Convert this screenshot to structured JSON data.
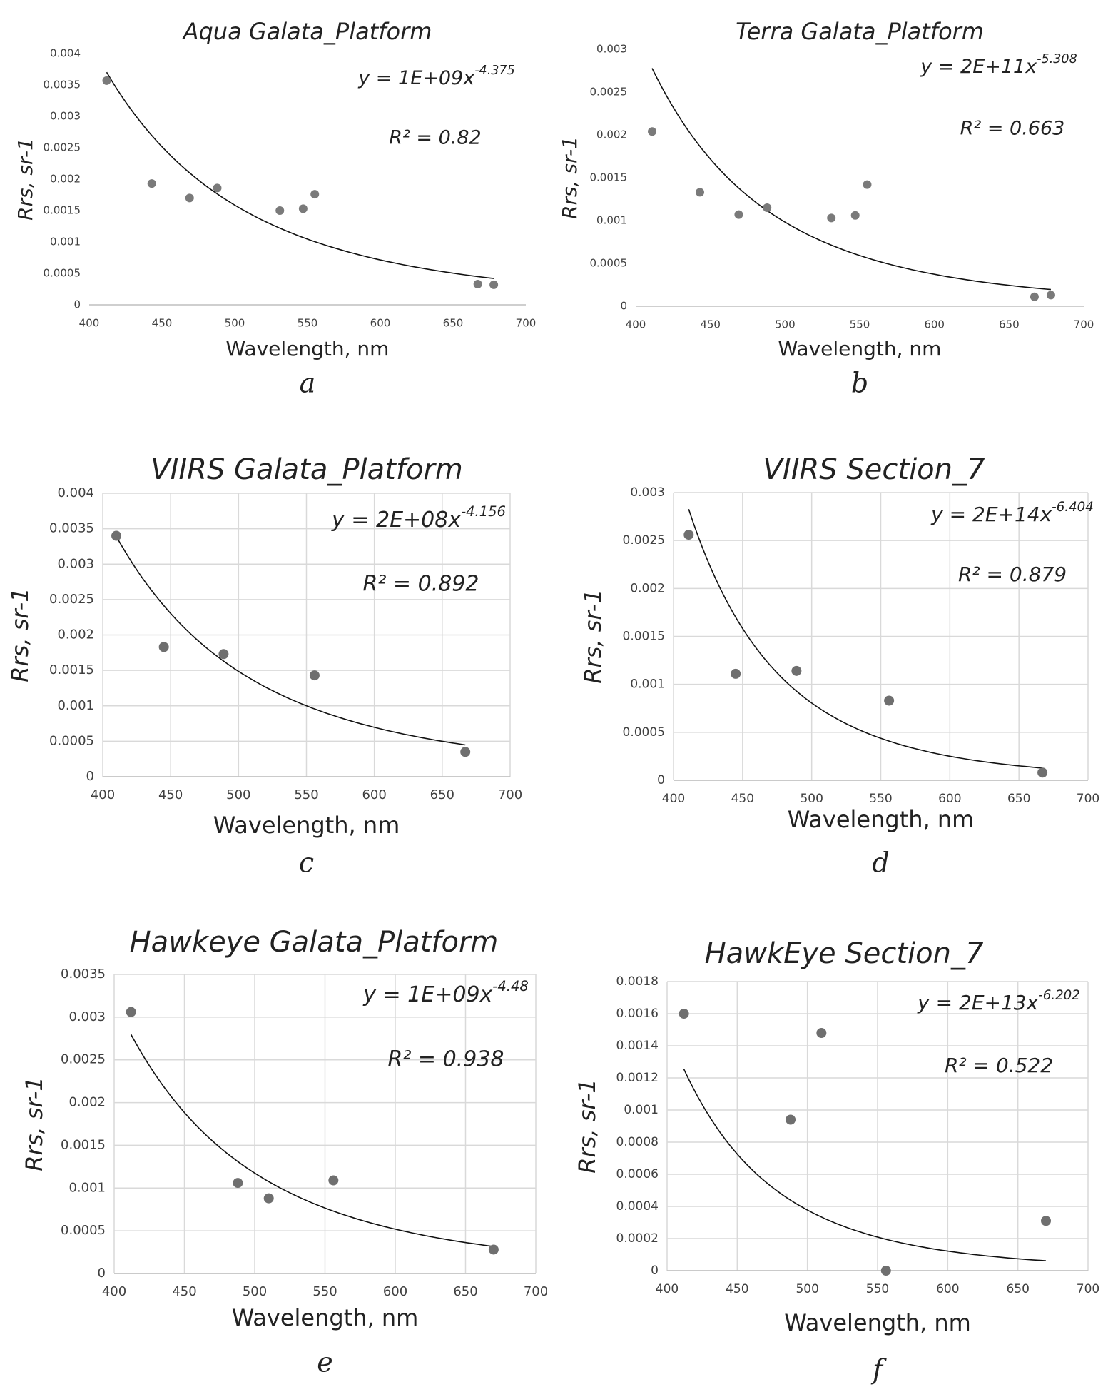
{
  "chart_data": [
    {
      "type": "scatter",
      "title": "Aqua Galata_Platform",
      "xlabel": "Wavelength, nm",
      "ylabel": "Rrs, sr-1",
      "caption": "a",
      "x": [
        412,
        443,
        469,
        488,
        531,
        547,
        555,
        667,
        678
      ],
      "values": [
        0.00357,
        0.00193,
        0.0017,
        0.00186,
        0.0015,
        0.00153,
        0.00176,
        0.00033,
        0.00032
      ],
      "xlim": [
        400,
        700
      ],
      "ylim": [
        0,
        0.004
      ],
      "xticks": [
        400,
        450,
        500,
        550,
        600,
        650,
        700
      ],
      "yticks": [
        0,
        0.0005,
        0.001,
        0.0015,
        0.002,
        0.0025,
        0.003,
        0.0035,
        0.004
      ],
      "grid": false,
      "color": "#7a7a7a",
      "trend": {
        "coef": 1020000000.0,
        "exponent": -4.375,
        "x": [
          412,
          678
        ]
      },
      "equation": "y = 1E+09x",
      "r2": "R² = 0.82"
    },
    {
      "type": "scatter",
      "title": "Terra Galata_Platform",
      "xlabel": "Wavelength, nm",
      "ylabel": "Rrs, sr-1",
      "caption": "b",
      "x": [
        411,
        443,
        469,
        488,
        531,
        547,
        555,
        667,
        678
      ],
      "values": [
        0.00204,
        0.00133,
        0.00107,
        0.00115,
        0.00103,
        0.00106,
        0.00142,
        0.00011,
        0.00013
      ],
      "xlim": [
        400,
        700
      ],
      "ylim": [
        0,
        0.003
      ],
      "xticks": [
        400,
        450,
        500,
        550,
        600,
        650,
        700
      ],
      "yticks": [
        0,
        0.0005,
        0.001,
        0.0015,
        0.002,
        0.0025,
        0.003
      ],
      "grid": false,
      "color": "#7a7a7a",
      "trend": {
        "coef": 208000000000.0,
        "exponent": -5.308,
        "x": [
          411,
          678
        ]
      },
      "equation": "y = 2E+11x",
      "r2": "R² = 0.663"
    },
    {
      "type": "scatter",
      "title": "VIIRS Galata_Platform",
      "xlabel": "Wavelength, nm",
      "ylabel": "Rrs, sr-1",
      "caption": "c",
      "x": [
        410,
        445,
        489,
        556,
        667
      ],
      "values": [
        0.0034,
        0.00183,
        0.00173,
        0.00143,
        0.00035
      ],
      "xlim": [
        400,
        700
      ],
      "ylim": [
        0,
        0.004
      ],
      "xticks": [
        400,
        450,
        500,
        550,
        600,
        650,
        700
      ],
      "yticks": [
        0,
        0.0005,
        0.001,
        0.0015,
        0.002,
        0.0025,
        0.003,
        0.0035,
        0.004
      ],
      "grid": true,
      "color": "#6f6f6f",
      "trend": {
        "coef": 245000000.0,
        "exponent": -4.156,
        "x": [
          410,
          667
        ]
      },
      "equation": "y = 2E+08x",
      "r2": "R² = 0.892"
    },
    {
      "type": "scatter",
      "title": "VIIRS Section_7",
      "xlabel": "Wavelength, nm",
      "ylabel": "Rrs, sr-1",
      "caption": "d",
      "x": [
        411,
        445,
        489,
        556,
        667
      ],
      "values": [
        0.00256,
        0.00111,
        0.00114,
        0.00083,
        8e-05
      ],
      "xlim": [
        400,
        700
      ],
      "ylim": [
        0,
        0.003
      ],
      "xticks": [
        400,
        450,
        500,
        550,
        600,
        650,
        700
      ],
      "yticks": [
        0,
        0.0005,
        0.001,
        0.0015,
        0.002,
        0.0025,
        0.003
      ],
      "grid": true,
      "color": "#6f6f6f",
      "trend": {
        "coef": 155000000000000.0,
        "exponent": -6.404,
        "x": [
          411,
          667
        ]
      },
      "equation": "y = 2E+14x",
      "r2": "R² = 0.879"
    },
    {
      "type": "scatter",
      "title": "Hawkeye Galata_Platform",
      "xlabel": "Wavelength, nm",
      "ylabel": "Rrs, sr-1",
      "caption": "e",
      "x": [
        412,
        488,
        510,
        556,
        670
      ],
      "values": [
        0.00306,
        0.00106,
        0.00088,
        0.00109,
        0.00028
      ],
      "xlim": [
        400,
        700
      ],
      "ylim": [
        0,
        0.0035
      ],
      "xticks": [
        400,
        450,
        500,
        550,
        600,
        650,
        700
      ],
      "yticks": [
        0,
        0.0005,
        0.001,
        0.0015,
        0.002,
        0.0025,
        0.003,
        0.0035
      ],
      "grid": true,
      "color": "#6f6f6f",
      "trend": {
        "coef": 1450000000.0,
        "exponent": -4.48,
        "x": [
          412,
          670
        ]
      },
      "equation": "y = 1E+09x",
      "r2": "R² = 0.938"
    },
    {
      "type": "scatter",
      "title": "HawkEye Section_7",
      "xlabel": "Wavelength, nm",
      "ylabel": "Rrs, sr-1",
      "caption": "f",
      "x": [
        412,
        488,
        510,
        556,
        670
      ],
      "values": [
        0.0016,
        0.00094,
        0.00148,
        0,
        0.00031
      ],
      "xlim": [
        400,
        700
      ],
      "ylim": [
        0,
        0.0018
      ],
      "xticks": [
        400,
        450,
        500,
        550,
        600,
        650,
        700
      ],
      "yticks": [
        0,
        0.0002,
        0.0004,
        0.0006,
        0.0008,
        0.001,
        0.0012,
        0.0014,
        0.0016,
        0.0018
      ],
      "grid": true,
      "color": "#6f6f6f",
      "trend": {
        "coef": 20700000000000.0,
        "exponent": -6.202,
        "x": [
          412,
          670
        ]
      },
      "equation": "y = 2E+13x",
      "r2": "R² = 0.522"
    }
  ]
}
